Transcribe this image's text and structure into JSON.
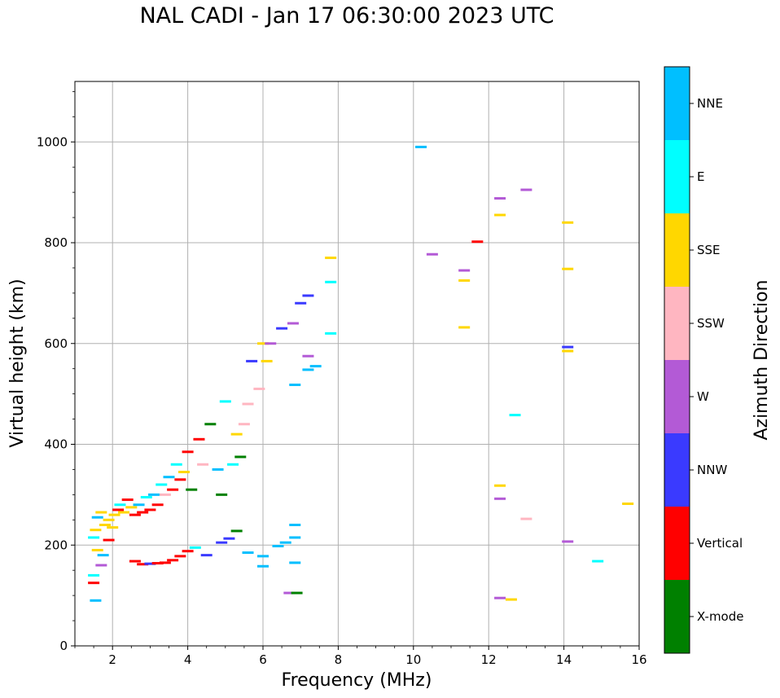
{
  "chart_data": {
    "type": "scatter",
    "title": "NAL CADI - Jan 17 06:30:00 2023 UTC",
    "xlabel": "Frequency (MHz)",
    "ylabel": "Virtual height (km)",
    "xlim": [
      1,
      16
    ],
    "ylim": [
      0,
      1120
    ],
    "xticks": [
      2,
      4,
      6,
      8,
      10,
      12,
      14,
      16
    ],
    "yticks": [
      0,
      200,
      400,
      600,
      800,
      1000
    ],
    "grid": true,
    "colorbar": {
      "label": "Azimuth Direction",
      "categories": [
        {
          "name": "X-mode",
          "color": "#008000"
        },
        {
          "name": "Vertical",
          "color": "#ff0000"
        },
        {
          "name": "NNW",
          "color": "#3a3aff"
        },
        {
          "name": "W",
          "color": "#b35ad6"
        },
        {
          "name": "SSW",
          "color": "#ffb6c1"
        },
        {
          "name": "SSE",
          "color": "#ffd700"
        },
        {
          "name": "E",
          "color": "#00ffff"
        },
        {
          "name": "NNE",
          "color": "#00bfff"
        }
      ]
    },
    "points": [
      {
        "f": 1.55,
        "h": 90,
        "c": "NNE"
      },
      {
        "f": 1.5,
        "h": 125,
        "c": "Vertical"
      },
      {
        "f": 1.5,
        "h": 140,
        "c": "E"
      },
      {
        "f": 1.7,
        "h": 160,
        "c": "W"
      },
      {
        "f": 1.75,
        "h": 180,
        "c": "NNE"
      },
      {
        "f": 1.6,
        "h": 190,
        "c": "SSE"
      },
      {
        "f": 1.5,
        "h": 215,
        "c": "E"
      },
      {
        "f": 1.55,
        "h": 230,
        "c": "SSE"
      },
      {
        "f": 1.6,
        "h": 255,
        "c": "NNE"
      },
      {
        "f": 1.7,
        "h": 265,
        "c": "SSE"
      },
      {
        "f": 1.8,
        "h": 240,
        "c": "SSE"
      },
      {
        "f": 1.9,
        "h": 250,
        "c": "SSE"
      },
      {
        "f": 2.0,
        "h": 235,
        "c": "SSE"
      },
      {
        "f": 2.05,
        "h": 260,
        "c": "SSE"
      },
      {
        "f": 2.15,
        "h": 270,
        "c": "Vertical"
      },
      {
        "f": 2.2,
        "h": 280,
        "c": "E"
      },
      {
        "f": 2.3,
        "h": 265,
        "c": "SSE"
      },
      {
        "f": 2.4,
        "h": 290,
        "c": "Vertical"
      },
      {
        "f": 2.5,
        "h": 275,
        "c": "SSE"
      },
      {
        "f": 2.6,
        "h": 260,
        "c": "Vertical"
      },
      {
        "f": 2.7,
        "h": 280,
        "c": "NNE"
      },
      {
        "f": 2.8,
        "h": 265,
        "c": "Vertical"
      },
      {
        "f": 2.9,
        "h": 295,
        "c": "E"
      },
      {
        "f": 3.0,
        "h": 270,
        "c": "Vertical"
      },
      {
        "f": 3.1,
        "h": 300,
        "c": "NNE"
      },
      {
        "f": 3.2,
        "h": 280,
        "c": "Vertical"
      },
      {
        "f": 3.3,
        "h": 320,
        "c": "E"
      },
      {
        "f": 3.4,
        "h": 300,
        "c": "SSW"
      },
      {
        "f": 3.5,
        "h": 335,
        "c": "NNE"
      },
      {
        "f": 3.6,
        "h": 310,
        "c": "Vertical"
      },
      {
        "f": 3.7,
        "h": 360,
        "c": "E"
      },
      {
        "f": 3.8,
        "h": 330,
        "c": "Vertical"
      },
      {
        "f": 3.9,
        "h": 345,
        "c": "SSE"
      },
      {
        "f": 4.0,
        "h": 385,
        "c": "Vertical"
      },
      {
        "f": 4.1,
        "h": 310,
        "c": "X-mode"
      },
      {
        "f": 4.3,
        "h": 410,
        "c": "Vertical"
      },
      {
        "f": 4.4,
        "h": 360,
        "c": "SSW"
      },
      {
        "f": 4.6,
        "h": 440,
        "c": "X-mode"
      },
      {
        "f": 4.8,
        "h": 350,
        "c": "NNE"
      },
      {
        "f": 4.9,
        "h": 300,
        "c": "X-mode"
      },
      {
        "f": 5.0,
        "h": 485,
        "c": "E"
      },
      {
        "f": 5.2,
        "h": 360,
        "c": "E"
      },
      {
        "f": 5.3,
        "h": 420,
        "c": "SSE"
      },
      {
        "f": 5.4,
        "h": 375,
        "c": "X-mode"
      },
      {
        "f": 5.5,
        "h": 440,
        "c": "SSW"
      },
      {
        "f": 5.6,
        "h": 480,
        "c": "SSW"
      },
      {
        "f": 5.7,
        "h": 565,
        "c": "NNW"
      },
      {
        "f": 5.9,
        "h": 510,
        "c": "SSW"
      },
      {
        "f": 6.0,
        "h": 600,
        "c": "SSE"
      },
      {
        "f": 6.1,
        "h": 565,
        "c": "SSE"
      },
      {
        "f": 6.2,
        "h": 600,
        "c": "W"
      },
      {
        "f": 6.5,
        "h": 630,
        "c": "NNW"
      },
      {
        "f": 6.8,
        "h": 640,
        "c": "W"
      },
      {
        "f": 6.85,
        "h": 518,
        "c": "NNE"
      },
      {
        "f": 7.0,
        "h": 680,
        "c": "NNW"
      },
      {
        "f": 7.2,
        "h": 695,
        "c": "NNW"
      },
      {
        "f": 7.2,
        "h": 575,
        "c": "W"
      },
      {
        "f": 7.2,
        "h": 548,
        "c": "NNE"
      },
      {
        "f": 7.4,
        "h": 555,
        "c": "NNE"
      },
      {
        "f": 7.8,
        "h": 770,
        "c": "SSE"
      },
      {
        "f": 7.8,
        "h": 722,
        "c": "E"
      },
      {
        "f": 7.8,
        "h": 620,
        "c": "E"
      },
      {
        "f": 1.9,
        "h": 210,
        "c": "Vertical"
      },
      {
        "f": 2.6,
        "h": 168,
        "c": "Vertical"
      },
      {
        "f": 2.8,
        "h": 162,
        "c": "Vertical"
      },
      {
        "f": 3.0,
        "h": 163,
        "c": "NNW"
      },
      {
        "f": 3.2,
        "h": 164,
        "c": "Vertical"
      },
      {
        "f": 3.4,
        "h": 165,
        "c": "Vertical"
      },
      {
        "f": 3.6,
        "h": 170,
        "c": "Vertical"
      },
      {
        "f": 3.8,
        "h": 178,
        "c": "Vertical"
      },
      {
        "f": 4.0,
        "h": 188,
        "c": "Vertical"
      },
      {
        "f": 4.2,
        "h": 195,
        "c": "E"
      },
      {
        "f": 4.5,
        "h": 180,
        "c": "NNW"
      },
      {
        "f": 4.9,
        "h": 205,
        "c": "NNW"
      },
      {
        "f": 5.1,
        "h": 213,
        "c": "NNW"
      },
      {
        "f": 5.3,
        "h": 228,
        "c": "X-mode"
      },
      {
        "f": 5.6,
        "h": 185,
        "c": "NNE"
      },
      {
        "f": 6.0,
        "h": 178,
        "c": "NNE"
      },
      {
        "f": 6.0,
        "h": 158,
        "c": "NNE"
      },
      {
        "f": 6.4,
        "h": 198,
        "c": "NNE"
      },
      {
        "f": 6.6,
        "h": 205,
        "c": "NNE"
      },
      {
        "f": 6.85,
        "h": 215,
        "c": "NNE"
      },
      {
        "f": 6.85,
        "h": 240,
        "c": "NNE"
      },
      {
        "f": 6.85,
        "h": 165,
        "c": "NNE"
      },
      {
        "f": 6.7,
        "h": 105,
        "c": "W"
      },
      {
        "f": 6.9,
        "h": 105,
        "c": "X-mode"
      },
      {
        "f": 10.2,
        "h": 990,
        "c": "NNE"
      },
      {
        "f": 10.5,
        "h": 777,
        "c": "W"
      },
      {
        "f": 11.35,
        "h": 745,
        "c": "W"
      },
      {
        "f": 11.35,
        "h": 725,
        "c": "SSE"
      },
      {
        "f": 11.35,
        "h": 632,
        "c": "SSE"
      },
      {
        "f": 11.7,
        "h": 802,
        "c": "Vertical"
      },
      {
        "f": 12.3,
        "h": 888,
        "c": "W"
      },
      {
        "f": 12.3,
        "h": 855,
        "c": "SSE"
      },
      {
        "f": 13.0,
        "h": 905,
        "c": "W"
      },
      {
        "f": 12.3,
        "h": 318,
        "c": "SSE"
      },
      {
        "f": 12.3,
        "h": 292,
        "c": "W"
      },
      {
        "f": 12.7,
        "h": 458,
        "c": "E"
      },
      {
        "f": 13.0,
        "h": 252,
        "c": "SSW"
      },
      {
        "f": 12.3,
        "h": 95,
        "c": "W"
      },
      {
        "f": 12.6,
        "h": 92,
        "c": "SSE"
      },
      {
        "f": 14.1,
        "h": 840,
        "c": "SSE"
      },
      {
        "f": 14.1,
        "h": 748,
        "c": "SSE"
      },
      {
        "f": 14.1,
        "h": 593,
        "c": "NNW"
      },
      {
        "f": 14.1,
        "h": 585,
        "c": "SSE"
      },
      {
        "f": 14.1,
        "h": 207,
        "c": "W"
      },
      {
        "f": 14.9,
        "h": 168,
        "c": "E"
      },
      {
        "f": 15.7,
        "h": 282,
        "c": "SSE"
      }
    ]
  }
}
